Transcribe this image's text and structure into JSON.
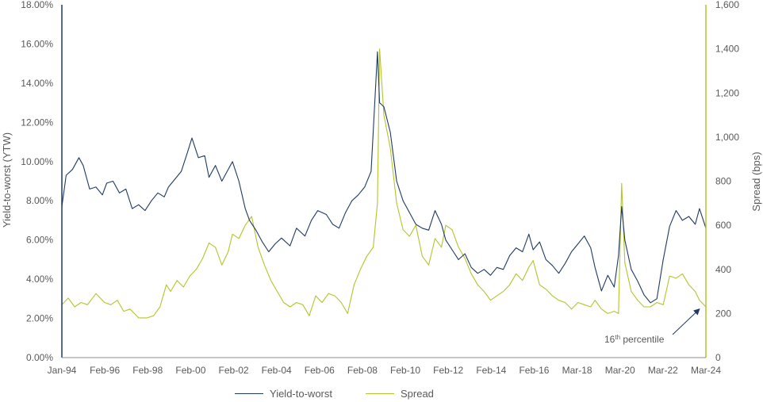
{
  "colors": {
    "ytw": "#1f3b63",
    "spread": "#b5c42a",
    "axis": "#8c8c8c",
    "text": "#595959"
  },
  "chart_data": {
    "type": "line",
    "ylabel": "Yield-to-worst (YTW)",
    "y2label": "Spread (bps)",
    "ylim": [
      0,
      18
    ],
    "y2lim": [
      0,
      1600
    ],
    "xlim": [
      1994.0,
      2024.2
    ],
    "x_tick_labels": [
      "Jan-94",
      "Feb-96",
      "Feb-98",
      "Feb-00",
      "Feb-02",
      "Feb-04",
      "Feb-06",
      "Feb-08",
      "Feb-10",
      "Feb-12",
      "Feb-14",
      "Feb-16",
      "Mar-18",
      "Mar-20",
      "Mar-22",
      "Mar-24"
    ],
    "y_tick_labels": [
      "0.00%",
      "2.00%",
      "4.00%",
      "6.00%",
      "8.00%",
      "10.00%",
      "12.00%",
      "14.00%",
      "16.00%",
      "18.00%"
    ],
    "y2_tick_labels": [
      "0",
      "200",
      "400",
      "600",
      "800",
      "1,000",
      "1,200",
      "1,400",
      "1,600"
    ],
    "annotation": {
      "text": "16",
      "sup": "th",
      "text2": " percentile",
      "target_x": 2024.0,
      "target_y2": 230
    },
    "series": [
      {
        "name": "Yield-to-worst",
        "axis": "left",
        "x": [
          1994.0,
          1994.2,
          1994.5,
          1994.8,
          1995.0,
          1995.3,
          1995.6,
          1995.9,
          1996.1,
          1996.4,
          1996.7,
          1997.0,
          1997.3,
          1997.6,
          1997.9,
          1998.2,
          1998.5,
          1998.8,
          1999.0,
          1999.3,
          1999.6,
          1999.9,
          2000.1,
          2000.4,
          2000.7,
          2000.9,
          2001.2,
          2001.5,
          2001.8,
          2002.0,
          2002.3,
          2002.6,
          2002.8,
          2003.1,
          2003.4,
          2003.7,
          2004.0,
          2004.3,
          2004.7,
          2005.0,
          2005.4,
          2005.7,
          2006.0,
          2006.4,
          2006.7,
          2007.0,
          2007.3,
          2007.6,
          2007.9,
          2008.2,
          2008.5,
          2008.8,
          2008.9,
          2009.1,
          2009.4,
          2009.7,
          2010.0,
          2010.3,
          2010.6,
          2010.9,
          2011.2,
          2011.5,
          2011.8,
          2012.0,
          2012.3,
          2012.6,
          2012.9,
          2013.2,
          2013.5,
          2013.8,
          2014.1,
          2014.4,
          2014.7,
          2015.0,
          2015.3,
          2015.6,
          2015.9,
          2016.1,
          2016.4,
          2016.7,
          2017.0,
          2017.3,
          2017.6,
          2017.9,
          2018.2,
          2018.5,
          2018.8,
          2019.0,
          2019.3,
          2019.6,
          2019.9,
          2020.1,
          2020.25,
          2020.4,
          2020.7,
          2021.0,
          2021.3,
          2021.6,
          2021.9,
          2022.2,
          2022.5,
          2022.8,
          2023.1,
          2023.4,
          2023.7,
          2023.9,
          2024.2
        ],
        "y": [
          7.7,
          9.3,
          9.6,
          10.2,
          9.8,
          8.6,
          8.7,
          8.3,
          8.9,
          9.0,
          8.4,
          8.6,
          7.6,
          7.8,
          7.5,
          8.0,
          8.4,
          8.2,
          8.7,
          9.1,
          9.5,
          10.5,
          11.2,
          10.2,
          10.3,
          9.2,
          9.8,
          9.0,
          9.6,
          10.0,
          9.0,
          7.6,
          7.0,
          6.5,
          5.9,
          5.4,
          5.8,
          6.1,
          5.7,
          6.6,
          6.2,
          7.0,
          7.5,
          7.3,
          6.8,
          6.6,
          7.4,
          8.0,
          8.3,
          8.7,
          9.5,
          15.6,
          13.0,
          12.8,
          11.5,
          9.0,
          8.0,
          7.4,
          6.8,
          6.6,
          6.5,
          7.5,
          6.8,
          6.0,
          5.5,
          5.0,
          5.3,
          4.6,
          4.3,
          4.5,
          4.2,
          4.6,
          4.5,
          5.2,
          5.6,
          5.4,
          6.3,
          5.5,
          5.9,
          5.0,
          4.7,
          4.3,
          4.8,
          5.4,
          5.8,
          6.2,
          5.6,
          4.6,
          3.4,
          4.2,
          3.6,
          5.2,
          7.7,
          6.0,
          4.5,
          3.9,
          3.2,
          2.8,
          3.0,
          5.0,
          6.7,
          7.5,
          7.0,
          7.2,
          6.8,
          7.6,
          6.6
        ]
      },
      {
        "name": "Spread",
        "axis": "right",
        "x": [
          1994.0,
          1994.3,
          1994.6,
          1994.9,
          1995.2,
          1995.6,
          1996.0,
          1996.3,
          1996.6,
          1996.9,
          1997.2,
          1997.6,
          1998.0,
          1998.3,
          1998.6,
          1998.9,
          1999.1,
          1999.4,
          1999.7,
          2000.0,
          2000.3,
          2000.6,
          2000.9,
          2001.2,
          2001.5,
          2001.8,
          2002.0,
          2002.3,
          2002.6,
          2002.9,
          2003.2,
          2003.5,
          2003.8,
          2004.1,
          2004.4,
          2004.7,
          2005.0,
          2005.3,
          2005.6,
          2005.9,
          2006.2,
          2006.5,
          2006.8,
          2007.1,
          2007.4,
          2007.7,
          2008.0,
          2008.3,
          2008.6,
          2008.8,
          2008.9,
          2009.1,
          2009.4,
          2009.7,
          2010.0,
          2010.3,
          2010.6,
          2010.9,
          2011.2,
          2011.5,
          2011.8,
          2012.0,
          2012.3,
          2012.6,
          2012.9,
          2013.2,
          2013.5,
          2013.8,
          2014.1,
          2014.4,
          2014.7,
          2015.0,
          2015.3,
          2015.6,
          2015.9,
          2016.1,
          2016.4,
          2016.7,
          2017.0,
          2017.3,
          2017.6,
          2017.9,
          2018.2,
          2018.5,
          2018.8,
          2019.0,
          2019.3,
          2019.6,
          2019.9,
          2020.1,
          2020.25,
          2020.4,
          2020.7,
          2021.0,
          2021.3,
          2021.6,
          2021.9,
          2022.2,
          2022.5,
          2022.8,
          2023.1,
          2023.4,
          2023.7,
          2023.9,
          2024.2
        ],
        "y": [
          240,
          270,
          230,
          250,
          240,
          290,
          250,
          240,
          260,
          210,
          220,
          180,
          180,
          190,
          230,
          330,
          300,
          350,
          320,
          370,
          400,
          450,
          520,
          500,
          420,
          480,
          560,
          540,
          600,
          640,
          500,
          420,
          350,
          300,
          250,
          230,
          250,
          240,
          190,
          280,
          250,
          290,
          280,
          250,
          200,
          330,
          400,
          460,
          500,
          700,
          1400,
          1100,
          950,
          700,
          580,
          550,
          600,
          460,
          420,
          540,
          500,
          600,
          580,
          500,
          450,
          380,
          330,
          300,
          260,
          280,
          300,
          330,
          380,
          350,
          410,
          440,
          330,
          310,
          280,
          260,
          250,
          220,
          250,
          240,
          230,
          260,
          220,
          200,
          210,
          200,
          790,
          430,
          300,
          260,
          230,
          230,
          250,
          240,
          370,
          360,
          380,
          330,
          300,
          260,
          230
        ]
      }
    ]
  },
  "legend": [
    {
      "label": "Yield-to-worst"
    },
    {
      "label": "Spread"
    }
  ]
}
